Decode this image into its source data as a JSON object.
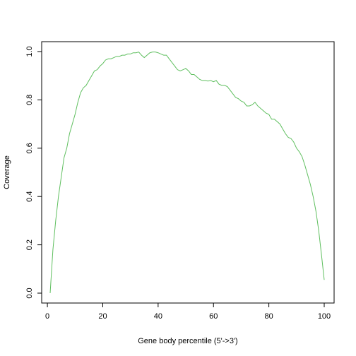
{
  "chart_data": {
    "type": "line",
    "title": "",
    "xlabel": "Gene body percentile (5'->3')",
    "ylabel": "Coverage",
    "xlim": [
      1,
      100
    ],
    "ylim": [
      0,
      1
    ],
    "x_ticks": [
      0,
      20,
      40,
      60,
      80,
      100
    ],
    "y_ticks": [
      0.0,
      0.2,
      0.4,
      0.6,
      0.8,
      1.0
    ],
    "x_tick_labels": [
      "0",
      "20",
      "40",
      "60",
      "80",
      "100"
    ],
    "y_tick_labels": [
      "0.0",
      "0.2",
      "0.4",
      "0.6",
      "0.8",
      "1.0"
    ],
    "grid": false,
    "legend": "none",
    "line_color": "#5fbf5f",
    "series": [
      {
        "x": [
          1,
          2,
          3,
          4,
          5,
          6,
          7,
          8,
          9,
          10,
          11,
          12,
          13,
          14,
          15,
          16,
          17,
          18,
          19,
          20,
          21,
          22,
          23,
          24,
          25,
          26,
          27,
          28,
          29,
          30,
          31,
          32,
          33,
          34,
          35,
          36,
          37,
          38,
          39,
          40,
          41,
          42,
          43,
          44,
          45,
          46,
          47,
          48,
          49,
          50,
          51,
          52,
          53,
          54,
          55,
          56,
          57,
          58,
          59,
          60,
          61,
          62,
          63,
          64,
          65,
          66,
          67,
          68,
          69,
          70,
          71,
          72,
          73,
          74,
          75,
          76,
          77,
          78,
          79,
          80,
          81,
          82,
          83,
          84,
          85,
          86,
          87,
          88,
          89,
          90,
          91,
          92,
          93,
          94,
          95,
          96,
          97,
          98,
          99,
          100
        ],
        "values": [
          0.0,
          0.18,
          0.3,
          0.4,
          0.48,
          0.56,
          0.6,
          0.66,
          0.7,
          0.74,
          0.79,
          0.83,
          0.85,
          0.86,
          0.88,
          0.9,
          0.92,
          0.925,
          0.94,
          0.95,
          0.965,
          0.97,
          0.97,
          0.975,
          0.98,
          0.98,
          0.985,
          0.985,
          0.99,
          0.99,
          0.995,
          0.995,
          0.998,
          0.985,
          0.975,
          0.985,
          0.995,
          0.998,
          0.998,
          0.995,
          0.99,
          0.985,
          0.985,
          0.97,
          0.955,
          0.94,
          0.925,
          0.92,
          0.925,
          0.93,
          0.92,
          0.905,
          0.905,
          0.895,
          0.885,
          0.88,
          0.88,
          0.878,
          0.88,
          0.875,
          0.88,
          0.865,
          0.86,
          0.86,
          0.855,
          0.84,
          0.825,
          0.81,
          0.805,
          0.795,
          0.79,
          0.775,
          0.775,
          0.78,
          0.79,
          0.775,
          0.765,
          0.755,
          0.745,
          0.74,
          0.72,
          0.72,
          0.71,
          0.7,
          0.68,
          0.66,
          0.645,
          0.64,
          0.625,
          0.6,
          0.585,
          0.565,
          0.53,
          0.49,
          0.45,
          0.4,
          0.34,
          0.26,
          0.16,
          0.055
        ]
      }
    ]
  }
}
